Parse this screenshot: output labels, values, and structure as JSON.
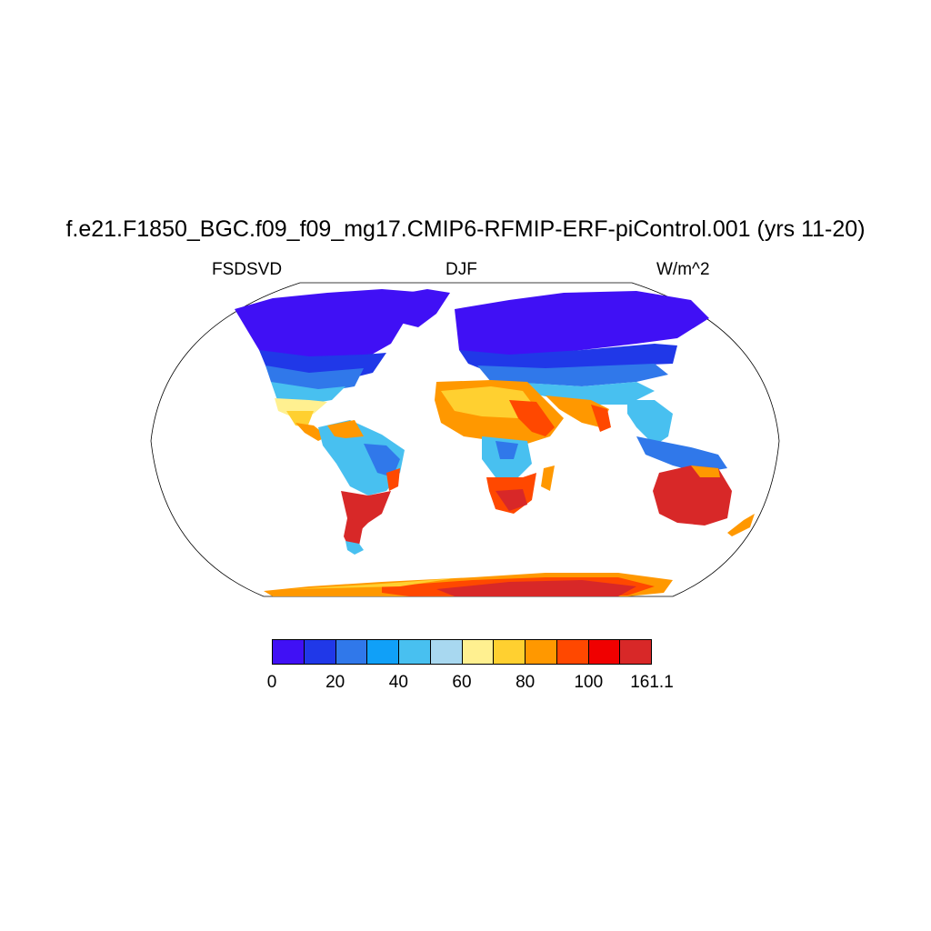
{
  "title": "f.e21.F1850_BGC.f09_f09_mg17.CMIP6-RFMIP-ERF-piControl.001 (yrs 11-20)",
  "subtitle_left": "FSDSVD",
  "subtitle_center": "DJF",
  "subtitle_right": "W/m^2",
  "colorbar": {
    "colors": [
      "#4010f5",
      "#2038e8",
      "#3078ea",
      "#10a0f8",
      "#48c0f0",
      "#a8d8f0",
      "#fff090",
      "#ffd030",
      "#ff9800",
      "#ff4800",
      "#f00000",
      "#d82828"
    ],
    "tick_labels": [
      "0",
      "20",
      "40",
      "60",
      "80",
      "100",
      "161.1"
    ]
  }
}
